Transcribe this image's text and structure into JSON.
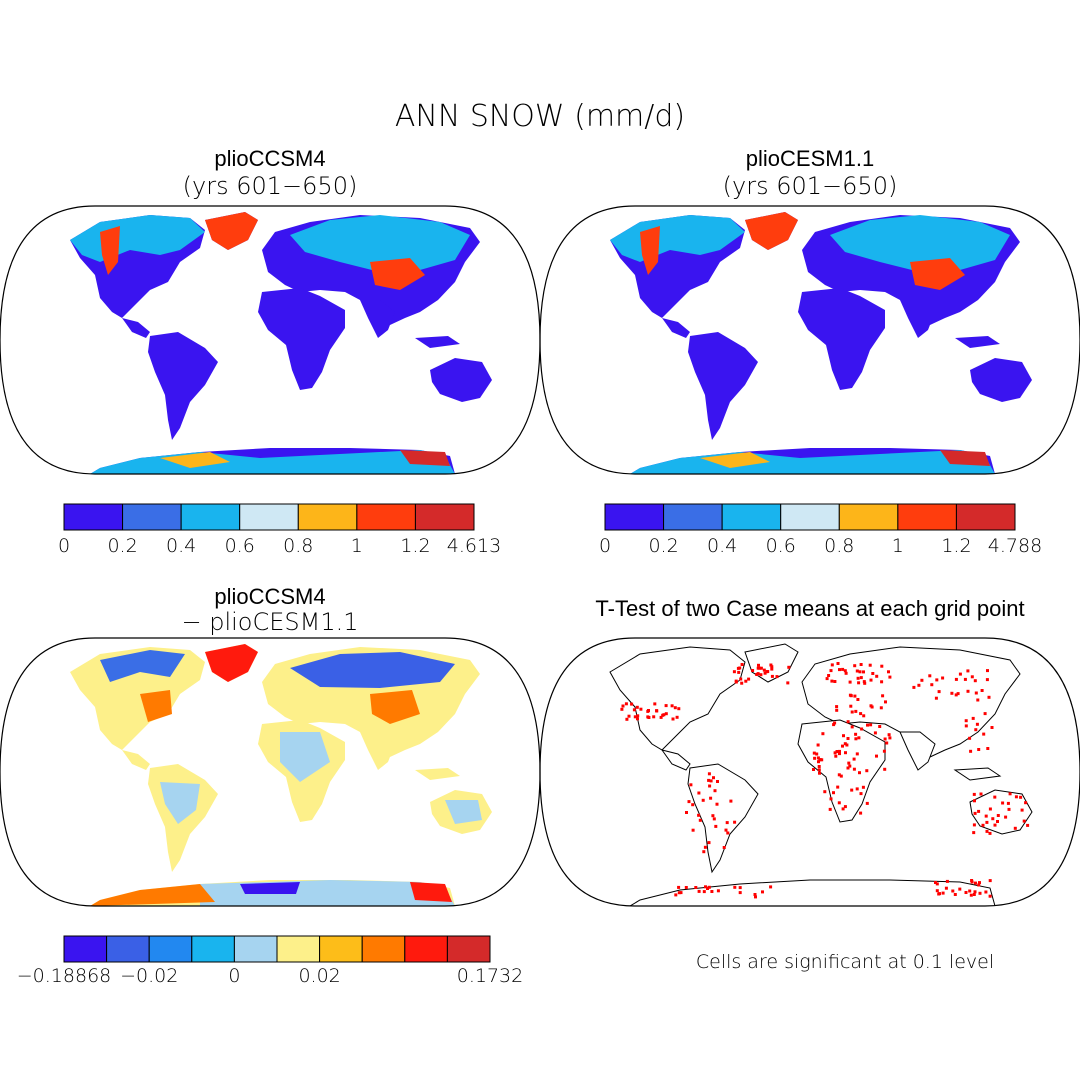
{
  "figure": {
    "main_title": "ANN SNOW (mm/d)"
  },
  "panels": {
    "top_left": {
      "title": "plioCCSM4",
      "subtitle": "(yrs 601−650)",
      "colorbar": {
        "colors": [
          "#3a14f0",
          "#3a6ee6",
          "#19b4ee",
          "#cfe8f4",
          "#fdb519",
          "#ff3d0d",
          "#d42a2a"
        ],
        "labels": [
          "0",
          "0.2",
          "0.4",
          "0.6",
          "0.8",
          "1",
          "1.2",
          "4.613"
        ]
      }
    },
    "top_right": {
      "title": "plioCESM1.1",
      "subtitle": "(yrs 601−650)",
      "colorbar": {
        "colors": [
          "#3a14f0",
          "#3a6ee6",
          "#19b4ee",
          "#cfe8f4",
          "#fdb519",
          "#ff3d0d",
          "#d42a2a"
        ],
        "labels": [
          "0",
          "0.2",
          "0.4",
          "0.6",
          "0.8",
          "1",
          "1.2",
          "4.788"
        ]
      }
    },
    "bottom_left": {
      "title": "plioCCSM4",
      "subtitle": "− plioCESM1.1",
      "colorbar": {
        "colors": [
          "#3a14f0",
          "#3a60e6",
          "#2288f0",
          "#19b4ee",
          "#a6d4f0",
          "#fdf08a",
          "#fdbd19",
          "#ff7a00",
          "#ff1a0d",
          "#d42a2a"
        ],
        "labels": [
          "−0.18868",
          "−0.02",
          "0",
          "0.02",
          "0.1732"
        ]
      }
    },
    "bottom_right": {
      "title": "T-Test of two Case means at each grid point",
      "note": "Cells are significant at 0.1 level",
      "marker_color": "#ff0000"
    }
  },
  "map_fill_colors": {
    "land_low": "#3a14f0",
    "diff_neutral_pos": "#fdf08a",
    "diff_neutral_neg": "#a6d4f0"
  }
}
